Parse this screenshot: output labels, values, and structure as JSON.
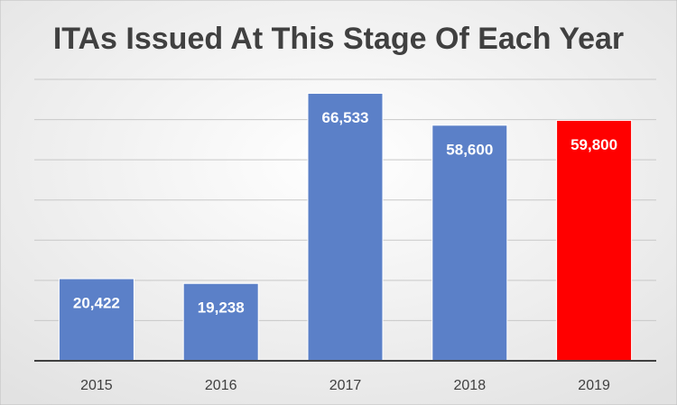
{
  "chart_data": {
    "type": "bar",
    "title": "ITAs Issued At This Stage Of Each Year",
    "categories": [
      "2015",
      "2016",
      "2017",
      "2018",
      "2019"
    ],
    "values": [
      20422,
      19238,
      66533,
      58600,
      59800
    ],
    "value_labels": [
      "20,422",
      "19,238",
      "66,533",
      "58,600",
      "59,800"
    ],
    "colors": [
      "#5b80c8",
      "#5b80c8",
      "#5b80c8",
      "#5b80c8",
      "#ff0000"
    ],
    "ylim": [
      0,
      70000
    ],
    "yticks": [
      0,
      10000,
      20000,
      30000,
      40000,
      50000,
      60000,
      70000
    ],
    "grid": true
  }
}
